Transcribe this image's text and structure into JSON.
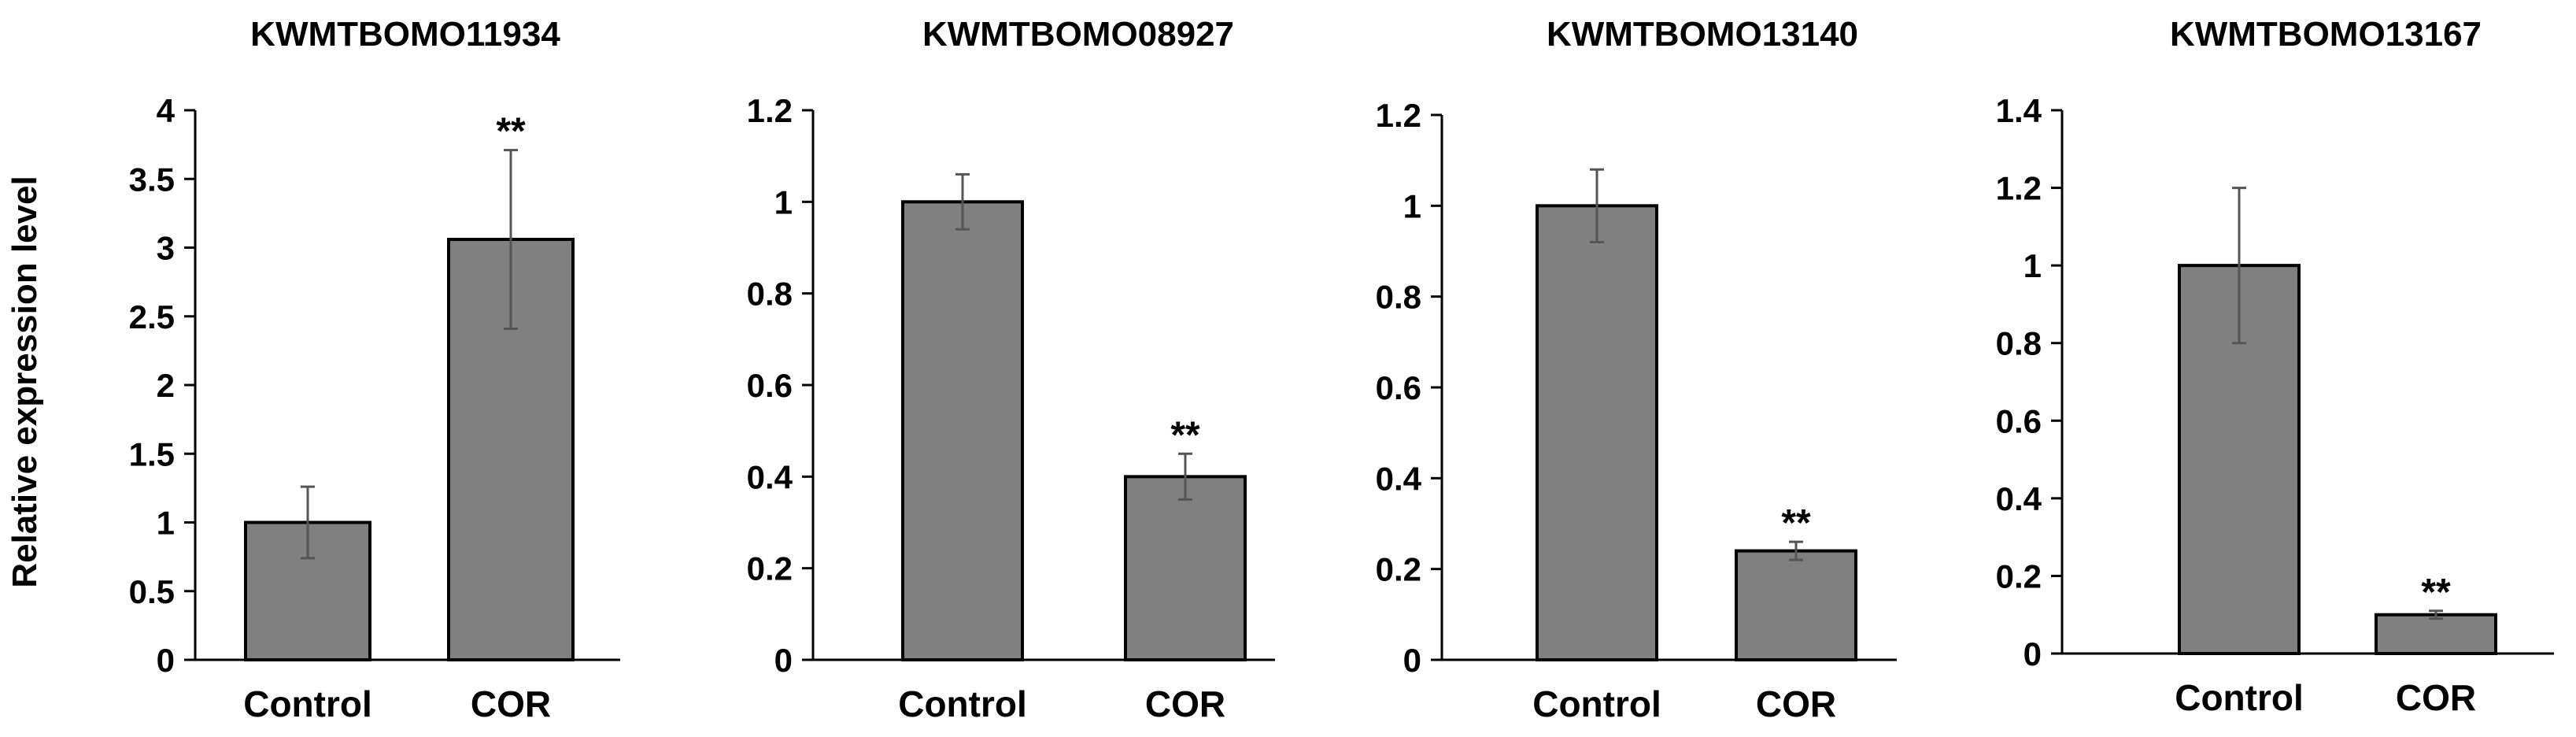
{
  "colors": {
    "bar": "#808080",
    "bar_edge": "#000000",
    "axis": "#000000",
    "error": "#555555",
    "background": "#ffffff"
  },
  "shared_ylabel": "Relative expression level",
  "chart_data": [
    {
      "type": "bar",
      "title": "KWMTBOMO11934",
      "categories": [
        "Control",
        "COR"
      ],
      "values": [
        1.0,
        3.06
      ],
      "errors": [
        0.26,
        0.65
      ],
      "significance": [
        "",
        "**"
      ],
      "ylim": [
        0,
        4
      ],
      "yticks": [
        0,
        0.5,
        1,
        1.5,
        2,
        2.5,
        3,
        3.5,
        4
      ],
      "ytick_labels": [
        "0",
        "0.5",
        "1",
        "1.5",
        "2",
        "2.5",
        "3",
        "3.5",
        "4"
      ],
      "xlabel": "",
      "ylabel": "Relative expression level"
    },
    {
      "type": "bar",
      "title": "KWMTBOMO08927",
      "categories": [
        "Control",
        "COR"
      ],
      "values": [
        1.0,
        0.4
      ],
      "errors": [
        0.06,
        0.05
      ],
      "significance": [
        "",
        "**"
      ],
      "ylim": [
        0,
        1.2
      ],
      "yticks": [
        0,
        0.2,
        0.4,
        0.6,
        0.8,
        1,
        1.2
      ],
      "ytick_labels": [
        "0",
        "0.2",
        "0.4",
        "0.6",
        "0.8",
        "1",
        "1.2"
      ],
      "xlabel": "",
      "ylabel": ""
    },
    {
      "type": "bar",
      "title": "KWMTBOMO13140",
      "categories": [
        "Control",
        "COR"
      ],
      "values": [
        1.0,
        0.24
      ],
      "errors": [
        0.08,
        0.02
      ],
      "significance": [
        "",
        "**"
      ],
      "ylim": [
        0,
        1.2
      ],
      "yticks": [
        0,
        0.2,
        0.4,
        0.6,
        0.8,
        1,
        1.2
      ],
      "ytick_labels": [
        "0",
        "0.2",
        "0.4",
        "0.6",
        "0.8",
        "1",
        "1.2"
      ],
      "xlabel": "",
      "ylabel": ""
    },
    {
      "type": "bar",
      "title": "KWMTBOMO13167",
      "categories": [
        "Control",
        "COR"
      ],
      "values": [
        1.0,
        0.1
      ],
      "errors": [
        0.2,
        0.01
      ],
      "significance": [
        "",
        "**"
      ],
      "ylim": [
        0,
        1.4
      ],
      "yticks": [
        0,
        0.2,
        0.4,
        0.6,
        0.8,
        1,
        1.2,
        1.4
      ],
      "ytick_labels": [
        "0",
        "0.2",
        "0.4",
        "0.6",
        "0.8",
        "1",
        "1.2",
        "1.4"
      ],
      "xlabel": "",
      "ylabel": ""
    }
  ]
}
